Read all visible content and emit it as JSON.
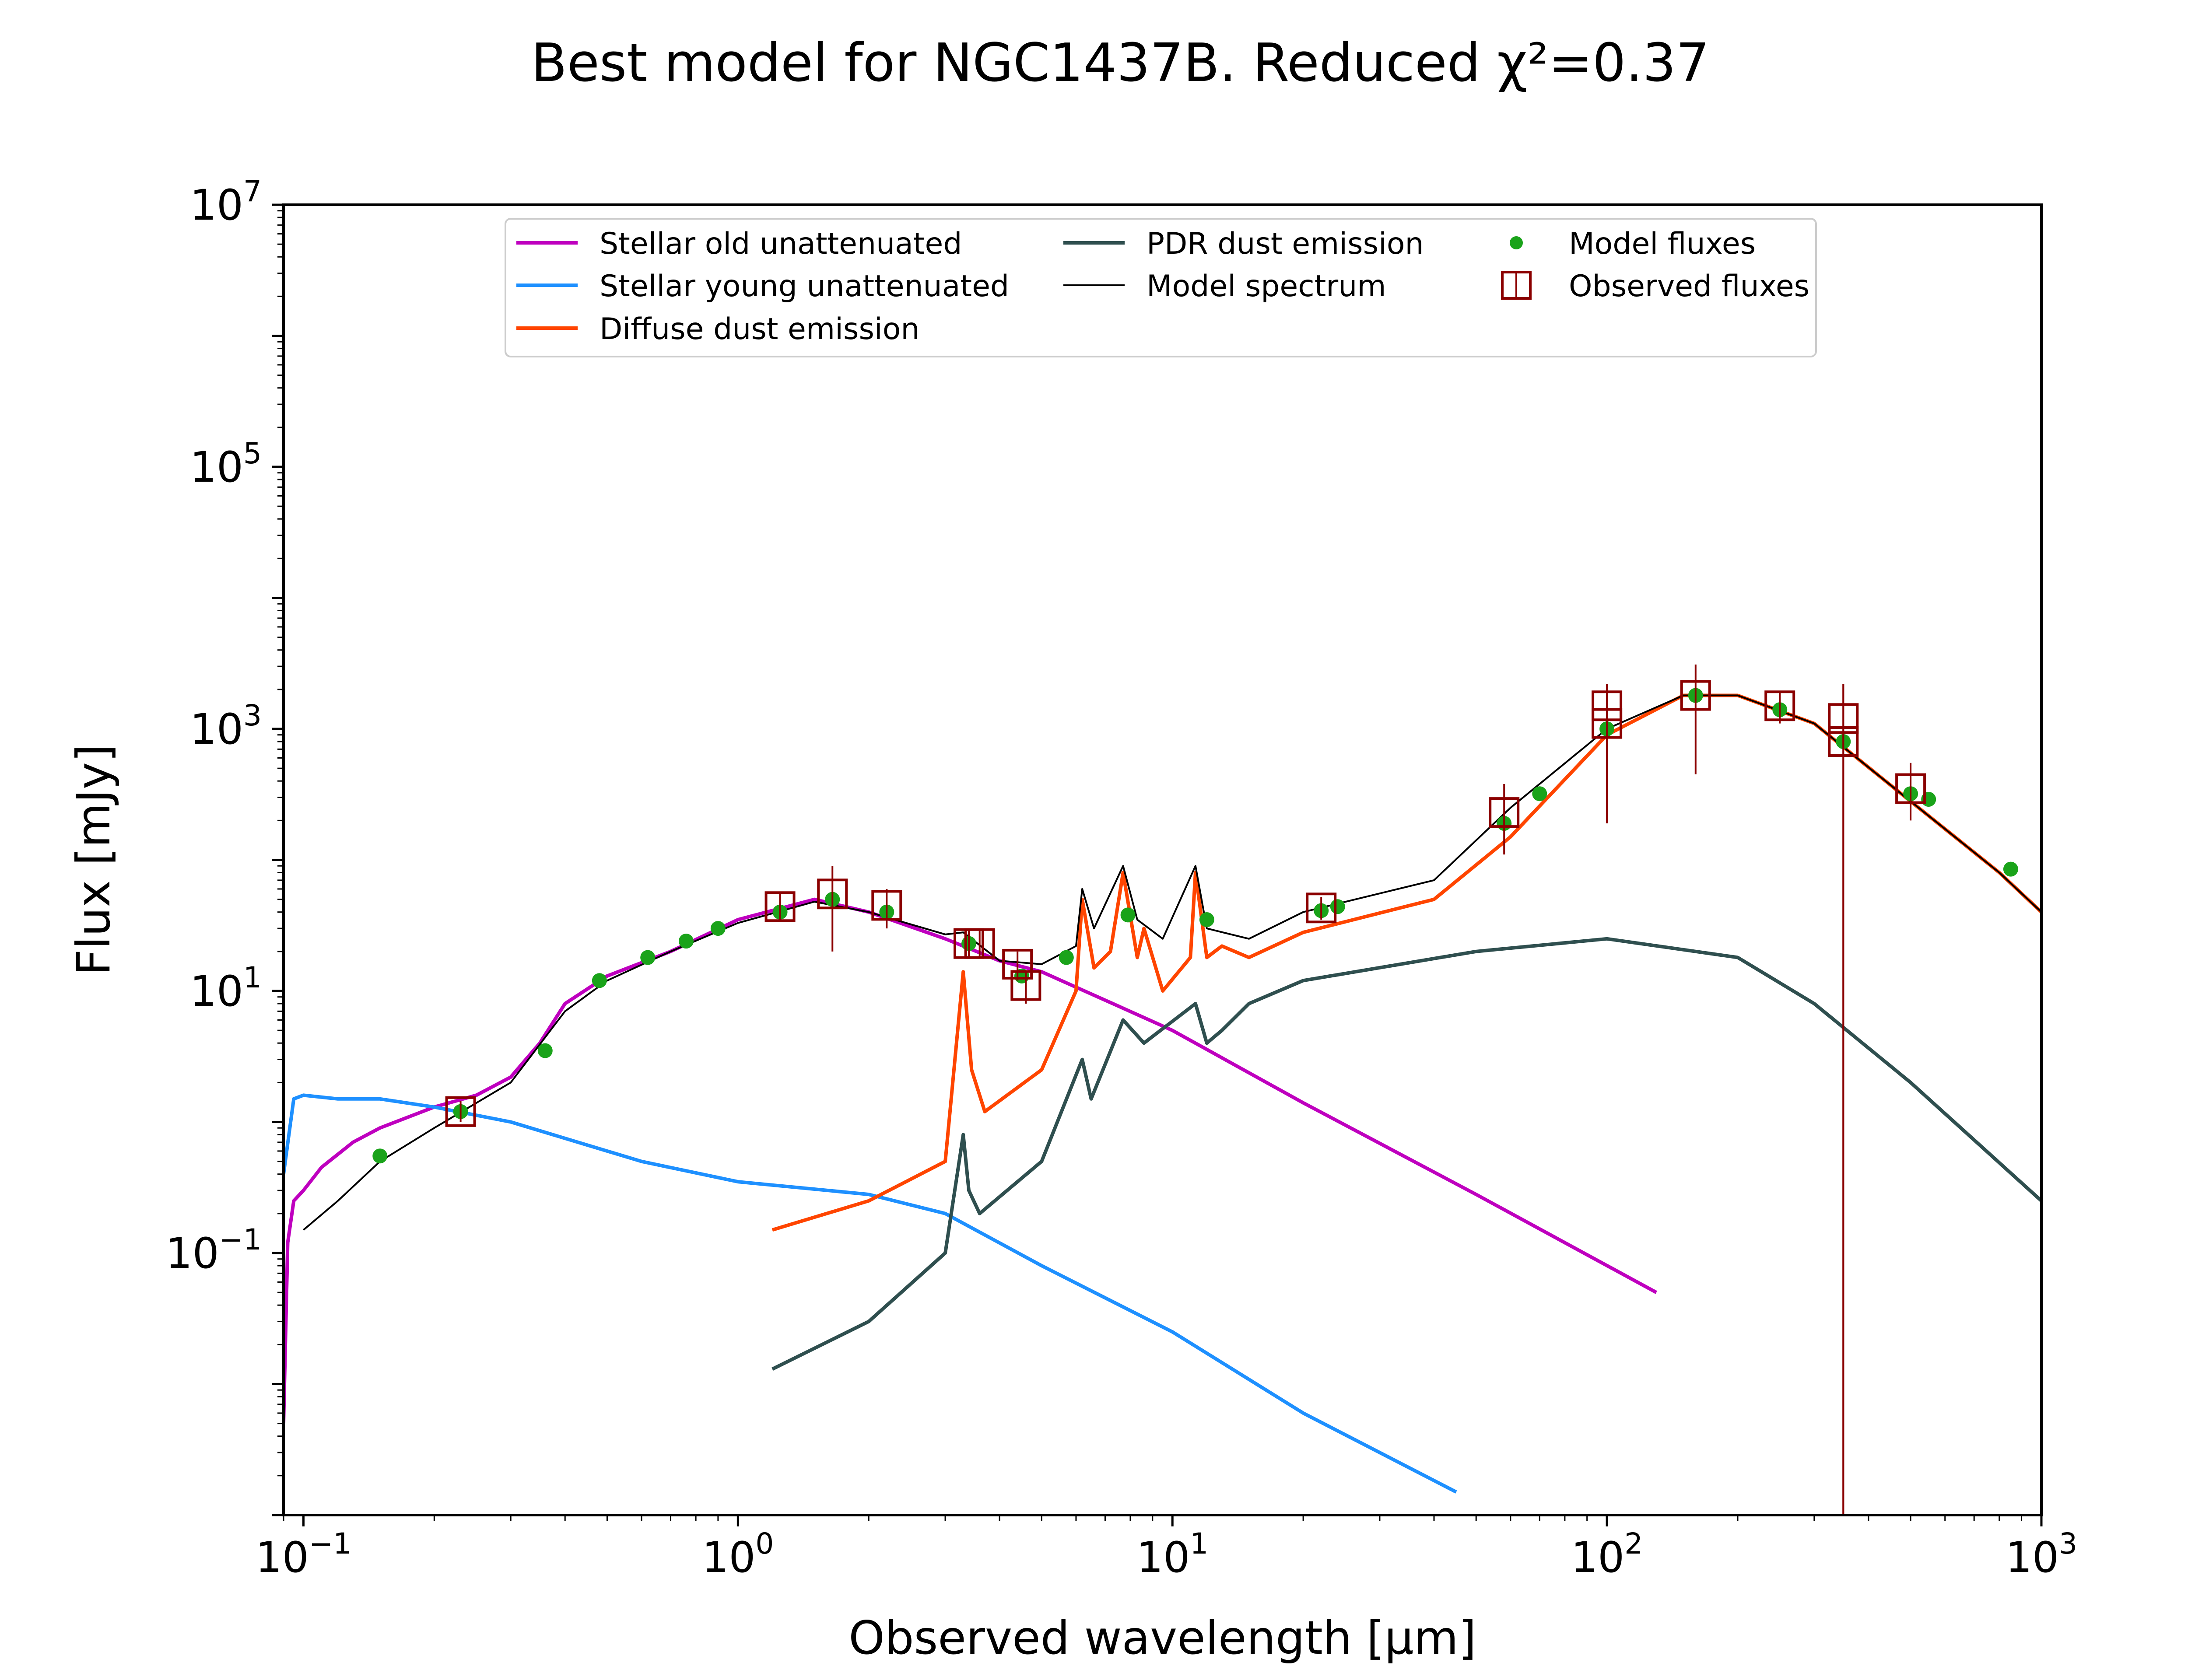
{
  "chart_data": {
    "type": "line",
    "title": "Best model for NGC1437B. Reduced χ²=0.37",
    "xlabel": "Observed wavelength [μm]",
    "ylabel": "Flux [mJy]",
    "x_scale": "log",
    "y_scale": "log",
    "xlim": [
      0.09,
      1000
    ],
    "ylim": [
      0.001,
      10000000
    ],
    "x_ticks": [
      {
        "value": 0.1,
        "label": "10",
        "exp": "−1"
      },
      {
        "value": 1,
        "label": "10",
        "exp": "0"
      },
      {
        "value": 10,
        "label": "10",
        "exp": "1"
      },
      {
        "value": 100,
        "label": "10",
        "exp": "2"
      },
      {
        "value": 1000,
        "label": "10",
        "exp": "3"
      }
    ],
    "y_ticks": [
      {
        "value": 0.1,
        "label": "10",
        "exp": "−1"
      },
      {
        "value": 10,
        "label": "10",
        "exp": "1"
      },
      {
        "value": 1000,
        "label": "10",
        "exp": "3"
      },
      {
        "value": 100000,
        "label": "10",
        "exp": "5"
      },
      {
        "value": 10000000,
        "label": "10",
        "exp": "7"
      }
    ],
    "grid": false,
    "legend_position": "top-center",
    "series": [
      {
        "name": "Stellar old unattenuated",
        "kind": "line",
        "color": "#bf00bf",
        "points": [
          [
            0.09,
            0.005
          ],
          [
            0.092,
            0.12
          ],
          [
            0.095,
            0.25
          ],
          [
            0.1,
            0.3
          ],
          [
            0.11,
            0.45
          ],
          [
            0.13,
            0.7
          ],
          [
            0.15,
            0.9
          ],
          [
            0.2,
            1.3
          ],
          [
            0.25,
            1.6
          ],
          [
            0.3,
            2.2
          ],
          [
            0.35,
            4
          ],
          [
            0.4,
            8
          ],
          [
            0.5,
            13
          ],
          [
            0.7,
            20
          ],
          [
            1,
            35
          ],
          [
            1.5,
            50
          ],
          [
            2,
            40
          ],
          [
            3,
            25
          ],
          [
            4,
            17
          ],
          [
            5,
            14
          ],
          [
            7,
            8.5
          ],
          [
            10,
            5
          ],
          [
            20,
            1.4
          ],
          [
            50,
            0.28
          ],
          [
            130,
            0.05
          ]
        ]
      },
      {
        "name": "Stellar young unattenuated",
        "kind": "line",
        "color": "#1e90ff",
        "points": [
          [
            0.09,
            0.4
          ],
          [
            0.095,
            1.5
          ],
          [
            0.1,
            1.6
          ],
          [
            0.12,
            1.5
          ],
          [
            0.15,
            1.5
          ],
          [
            0.2,
            1.3
          ],
          [
            0.3,
            1.0
          ],
          [
            0.4,
            0.75
          ],
          [
            0.6,
            0.5
          ],
          [
            1,
            0.35
          ],
          [
            2,
            0.28
          ],
          [
            3,
            0.2
          ],
          [
            5,
            0.08
          ],
          [
            10,
            0.025
          ],
          [
            20,
            0.006
          ],
          [
            45,
            0.0015
          ]
        ]
      },
      {
        "name": "Diffuse dust emission",
        "kind": "line",
        "color": "#ff4500",
        "points": [
          [
            1.2,
            0.15
          ],
          [
            2,
            0.25
          ],
          [
            3,
            0.5
          ],
          [
            3.3,
            14
          ],
          [
            3.45,
            2.5
          ],
          [
            3.7,
            1.2
          ],
          [
            5,
            2.5
          ],
          [
            6.0,
            10
          ],
          [
            6.2,
            50
          ],
          [
            6.6,
            15
          ],
          [
            7.2,
            20
          ],
          [
            7.7,
            80
          ],
          [
            8.3,
            18
          ],
          [
            8.6,
            30
          ],
          [
            9.5,
            10
          ],
          [
            11,
            18
          ],
          [
            11.3,
            80
          ],
          [
            12,
            18
          ],
          [
            13,
            22
          ],
          [
            15,
            18
          ],
          [
            20,
            28
          ],
          [
            40,
            50
          ],
          [
            60,
            150
          ],
          [
            100,
            900
          ],
          [
            150,
            1800
          ],
          [
            200,
            1800
          ],
          [
            300,
            1100
          ],
          [
            500,
            280
          ],
          [
            800,
            80
          ],
          [
            1000,
            40
          ]
        ]
      },
      {
        "name": "PDR dust emission",
        "kind": "line",
        "color": "#2f4f4f",
        "points": [
          [
            1.2,
            0.013
          ],
          [
            2,
            0.03
          ],
          [
            3,
            0.1
          ],
          [
            3.3,
            0.8
          ],
          [
            3.4,
            0.3
          ],
          [
            3.6,
            0.2
          ],
          [
            5,
            0.5
          ],
          [
            6.2,
            3
          ],
          [
            6.5,
            1.5
          ],
          [
            7.7,
            6
          ],
          [
            8.6,
            4
          ],
          [
            11.3,
            8
          ],
          [
            12,
            4
          ],
          [
            13,
            5
          ],
          [
            15,
            8
          ],
          [
            20,
            12
          ],
          [
            50,
            20
          ],
          [
            100,
            25
          ],
          [
            200,
            18
          ],
          [
            300,
            8
          ],
          [
            500,
            2
          ],
          [
            1000,
            0.25
          ]
        ]
      },
      {
        "name": "Model spectrum",
        "kind": "line",
        "color": "#000000",
        "points": [
          [
            0.1,
            0.15
          ],
          [
            0.12,
            0.25
          ],
          [
            0.15,
            0.5
          ],
          [
            0.2,
            0.9
          ],
          [
            0.3,
            2
          ],
          [
            0.4,
            7
          ],
          [
            0.5,
            12
          ],
          [
            0.7,
            20
          ],
          [
            1,
            33
          ],
          [
            1.5,
            48
          ],
          [
            2,
            40
          ],
          [
            3,
            27
          ],
          [
            3.3,
            28
          ],
          [
            4,
            17
          ],
          [
            5,
            16
          ],
          [
            6,
            22
          ],
          [
            6.2,
            60
          ],
          [
            6.6,
            30
          ],
          [
            7.7,
            90
          ],
          [
            8.3,
            35
          ],
          [
            9.5,
            25
          ],
          [
            11.3,
            90
          ],
          [
            12,
            30
          ],
          [
            15,
            25
          ],
          [
            20,
            40
          ],
          [
            40,
            70
          ],
          [
            60,
            250
          ],
          [
            100,
            1000
          ],
          [
            150,
            1800
          ],
          [
            200,
            1800
          ],
          [
            300,
            1100
          ],
          [
            500,
            280
          ],
          [
            800,
            80
          ],
          [
            1000,
            40
          ]
        ]
      },
      {
        "name": "Model fluxes",
        "kind": "scatter",
        "color": "#1aa31a",
        "points": [
          [
            0.15,
            0.55
          ],
          [
            0.23,
            1.2
          ],
          [
            0.36,
            3.5
          ],
          [
            0.48,
            12
          ],
          [
            0.62,
            18
          ],
          [
            0.76,
            24
          ],
          [
            0.9,
            30
          ],
          [
            1.25,
            40
          ],
          [
            1.65,
            50
          ],
          [
            2.2,
            40
          ],
          [
            3.4,
            23
          ],
          [
            4.5,
            13
          ],
          [
            5.7,
            18
          ],
          [
            7.9,
            38
          ],
          [
            12,
            35
          ],
          [
            22,
            41
          ],
          [
            24,
            44
          ],
          [
            58,
            190
          ],
          [
            70,
            320
          ],
          [
            100,
            1000
          ],
          [
            160,
            1800
          ],
          [
            250,
            1400
          ],
          [
            350,
            800
          ],
          [
            500,
            320
          ],
          [
            550,
            290
          ],
          [
            850,
            85
          ]
        ]
      },
      {
        "name": "Observed fluxes",
        "kind": "errorbar",
        "color": "#8b0000",
        "points": [
          [
            0.23,
            1.2,
            1.0,
            1.45
          ],
          [
            1.25,
            44,
            34,
            56
          ],
          [
            1.65,
            55,
            20,
            90
          ],
          [
            2.2,
            45,
            30,
            60
          ],
          [
            3.4,
            23,
            18,
            30
          ],
          [
            3.6,
            23,
            18,
            30
          ],
          [
            4.4,
            16,
            12,
            20
          ],
          [
            4.6,
            11,
            8,
            14
          ],
          [
            22,
            43,
            35,
            52
          ],
          [
            58,
            230,
            110,
            380
          ],
          [
            100,
            1100,
            190,
            1800
          ],
          [
            100,
            1500,
            800,
            2200
          ],
          [
            160,
            1800,
            450,
            3100
          ],
          [
            250,
            1500,
            1100,
            1900
          ],
          [
            350,
            800,
            0.001,
            2200
          ],
          [
            350,
            1200,
            0.001,
            2200
          ],
          [
            500,
            350,
            200,
            550
          ]
        ]
      }
    ]
  }
}
